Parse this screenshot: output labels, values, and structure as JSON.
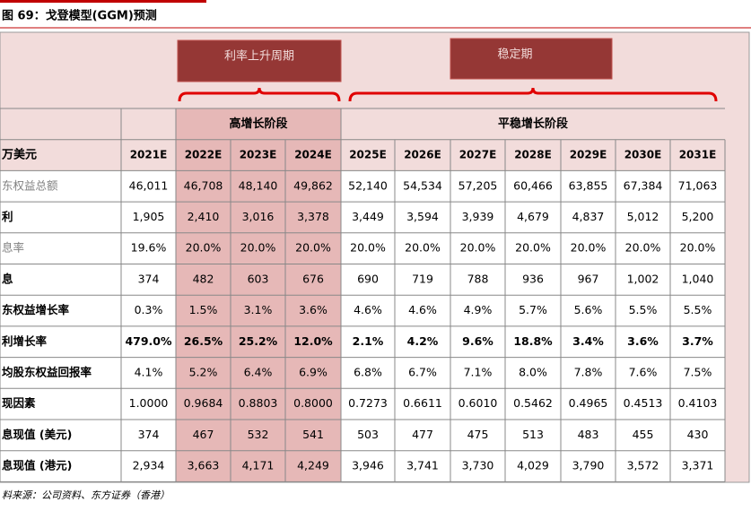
{
  "caption": "图 69：戈登模型(GGM)预测",
  "banners": [
    "利率上升周期",
    "稳定期"
  ],
  "table": {
    "phases": [
      "高增长阶段",
      "平稳增长阶段"
    ],
    "unit": "万美元",
    "years": [
      "2021E",
      "2022E",
      "2023E",
      "2024E",
      "2025E",
      "2026E",
      "2027E",
      "2028E",
      "2029E",
      "2030E",
      "2031E"
    ],
    "rows": [
      [
        "东权益总额",
        "46,011",
        "46,708",
        "48,140",
        "49,862",
        "52,140",
        "54,534",
        "57,205",
        "60,466",
        "63,855",
        "67,384",
        "71,063"
      ],
      [
        "利",
        "1,905",
        "2,410",
        "3,016",
        "3,378",
        "3,449",
        "3,594",
        "3,939",
        "4,679",
        "4,837",
        "5,012",
        "5,200"
      ],
      [
        "息率",
        "19.6%",
        "20.0%",
        "20.0%",
        "20.0%",
        "20.0%",
        "20.0%",
        "20.0%",
        "20.0%",
        "20.0%",
        "20.0%",
        "20.0%"
      ],
      [
        "息",
        "374",
        "482",
        "603",
        "676",
        "690",
        "719",
        "788",
        "936",
        "967",
        "1,002",
        "1,040"
      ],
      [
        "东权益增长率",
        "0.3%",
        "1.5%",
        "3.1%",
        "3.6%",
        "4.6%",
        "4.6%",
        "4.9%",
        "5.7%",
        "5.6%",
        "5.5%",
        "5.5%"
      ],
      [
        "利增长率",
        "479.0%",
        "26.5%",
        "25.2%",
        "12.0%",
        "2.1%",
        "4.2%",
        "9.6%",
        "18.8%",
        "3.4%",
        "3.6%",
        "3.7%"
      ],
      [
        "均股东权益回报率",
        "4.1%",
        "5.2%",
        "6.4%",
        "6.9%",
        "6.8%",
        "6.7%",
        "7.1%",
        "8.0%",
        "7.8%",
        "7.6%",
        "7.5%"
      ],
      [
        "现因素",
        "1.0000",
        "0.9684",
        "0.8803",
        "0.8000",
        "0.7273",
        "0.6611",
        "0.6010",
        "0.5462",
        "0.4965",
        "0.4513",
        "0.4103"
      ],
      [
        "息现值 (美元)",
        "374",
        "467",
        "532",
        "541",
        "503",
        "477",
        "475",
        "513",
        "483",
        "455",
        "430"
      ],
      [
        "息现值 (港元)",
        "2,934",
        "3,663",
        "4,171",
        "4,249",
        "3,946",
        "3,741",
        "3,730",
        "4,029",
        "3,790",
        "3,572",
        "3,371"
      ]
    ]
  },
  "source": "料来源：公司资料、东方证券（香港）"
}
